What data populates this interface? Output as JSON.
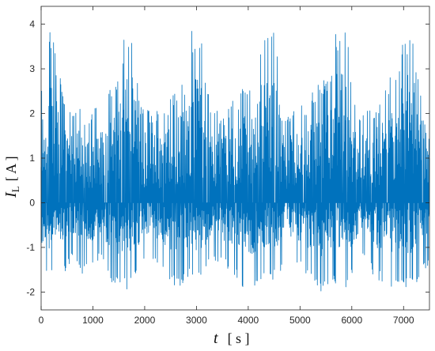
{
  "chart_data": {
    "type": "line",
    "title": "",
    "xlabel": {
      "symbol": "t",
      "unit": "[ s ]"
    },
    "ylabel": {
      "symbol": "I",
      "subscript": "L",
      "unit": "[ A ]"
    },
    "xlim": [
      0,
      7500
    ],
    "ylim": [
      -2.4,
      4.4
    ],
    "x_ticks": [
      0,
      1000,
      2000,
      3000,
      4000,
      5000,
      6000,
      7000
    ],
    "y_ticks": [
      -2,
      -1,
      0,
      1,
      2,
      3,
      4
    ],
    "grid": false,
    "legend": "none",
    "series_color": "#0072BD",
    "series": [
      {
        "x": [
          0,
          100,
          200,
          300,
          400,
          500,
          600,
          700,
          800,
          900,
          1000,
          1100,
          1200,
          1300,
          1400,
          1500,
          1600,
          1700,
          1800,
          1900,
          2000,
          2100,
          2200,
          2300,
          2400,
          2500,
          2600,
          2700,
          2800,
          2900,
          3000,
          3100,
          3200,
          3300,
          3400,
          3500,
          3600,
          3700,
          3800,
          3900,
          4000,
          4100,
          4200,
          4300,
          4400,
          4500,
          4600,
          4700,
          4800,
          4900,
          5000,
          5100,
          5200,
          5300,
          5400,
          5500,
          5600,
          5700,
          5800,
          5900,
          6000,
          6100,
          6200,
          6300,
          6400,
          6500,
          6600,
          6700,
          6800,
          6900,
          7000,
          7100,
          7200,
          7300,
          7400,
          7500
        ],
        "max": [
          2.4,
          3.85,
          3.85,
          3.85,
          3.85,
          2.5,
          2.2,
          2.3,
          2.0,
          2.0,
          2.1,
          2.4,
          2.4,
          2.6,
          2.6,
          2.8,
          3.85,
          3.85,
          3.85,
          2.3,
          2.2,
          2.1,
          2.1,
          2.1,
          2.2,
          2.4,
          2.6,
          2.7,
          2.9,
          3.85,
          3.85,
          3.85,
          2.6,
          2.2,
          2.1,
          2.0,
          2.1,
          2.3,
          2.4,
          2.6,
          2.7,
          2.9,
          3.3,
          3.85,
          3.85,
          3.85,
          3.0,
          2.0,
          2.0,
          2.1,
          2.2,
          2.2,
          2.4,
          2.6,
          2.7,
          2.8,
          3.2,
          3.85,
          3.85,
          3.85,
          2.8,
          2.2,
          2.1,
          2.1,
          2.1,
          2.3,
          2.5,
          2.8,
          3.0,
          3.2,
          3.85,
          3.85,
          3.85,
          2.8,
          2.4,
          2.2
        ],
        "min": [
          -2.0,
          -1.7,
          -1.7,
          -1.6,
          -1.7,
          -1.5,
          -1.3,
          -1.4,
          -1.6,
          -1.5,
          -1.4,
          -1.3,
          -1.4,
          -1.8,
          -1.9,
          -1.9,
          -1.9,
          -2.0,
          -1.7,
          -1.6,
          -1.3,
          -1.2,
          -1.3,
          -1.4,
          -1.6,
          -1.8,
          -1.9,
          -1.9,
          -1.7,
          -1.7,
          -1.8,
          -1.8,
          -1.5,
          -1.4,
          -1.3,
          -1.4,
          -1.5,
          -1.6,
          -1.7,
          -1.9,
          -2.0,
          -1.9,
          -1.8,
          -1.7,
          -1.8,
          -1.7,
          -1.6,
          -1.4,
          -1.3,
          -1.4,
          -1.5,
          -1.6,
          -1.8,
          -1.9,
          -2.0,
          -1.9,
          -1.8,
          -1.9,
          -2.0,
          -1.9,
          -1.6,
          -1.4,
          -1.3,
          -1.4,
          -1.6,
          -1.7,
          -1.9,
          -1.9,
          -2.0,
          -1.9,
          -1.8,
          -2.0,
          -1.9,
          -1.7,
          -1.5,
          -1.4
        ]
      }
    ]
  }
}
